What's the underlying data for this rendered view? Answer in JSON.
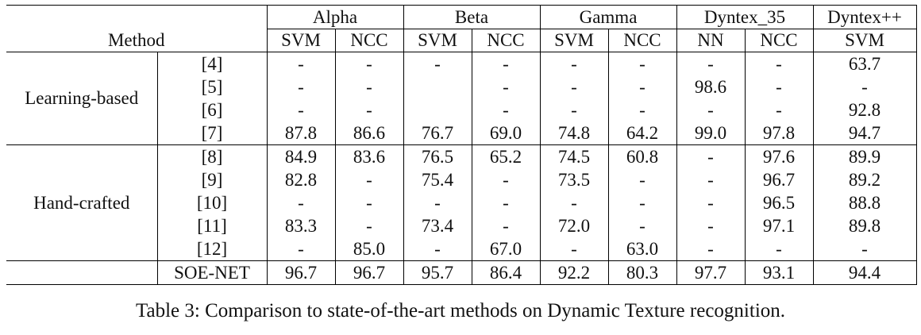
{
  "table": {
    "method_header": "Method",
    "datasets": [
      {
        "name": "Alpha",
        "metrics": [
          "SVM",
          "NCC"
        ]
      },
      {
        "name": "Beta",
        "metrics": [
          "SVM",
          "NCC"
        ]
      },
      {
        "name": "Gamma",
        "metrics": [
          "SVM",
          "NCC"
        ]
      },
      {
        "name": "Dyntex_35",
        "metrics": [
          "NN",
          "NCC"
        ]
      },
      {
        "name": "Dyntex++",
        "metrics": [
          "SVM"
        ]
      }
    ],
    "groups": [
      {
        "label": "Learning-based",
        "rows": [
          {
            "ref": "[4]",
            "values": [
              "-",
              "-",
              "-",
              "-",
              "-",
              "-",
              "-",
              "-",
              "63.7"
            ],
            "bold": []
          },
          {
            "ref": "[5]",
            "values": [
              "-",
              "-",
              "",
              "-",
              "-",
              "-",
              "98.6",
              "-",
              "-"
            ],
            "bold": []
          },
          {
            "ref": "[6]",
            "values": [
              "-",
              "-",
              "",
              "-",
              "-",
              "-",
              "-",
              "-",
              "92.8"
            ],
            "bold": []
          },
          {
            "ref": "[7]",
            "values": [
              "87.8",
              "86.6",
              "76.7",
              "69.0",
              "74.8",
              "64.2",
              "99.0",
              "97.8",
              "94.7"
            ],
            "bold": [
              6,
              7,
              8
            ]
          }
        ]
      },
      {
        "label": "Hand-crafted",
        "rows": [
          {
            "ref": "[8]",
            "values": [
              "84.9",
              "83.6",
              "76.5",
              "65.2",
              "74.5",
              "60.8",
              "-",
              "97.6",
              "89.9"
            ],
            "bold": []
          },
          {
            "ref": "[9]",
            "values": [
              "82.8",
              "-",
              "75.4",
              "-",
              "73.5",
              "-",
              "-",
              "96.7",
              "89.2"
            ],
            "bold": []
          },
          {
            "ref": "[10]",
            "values": [
              "-",
              "-",
              "-",
              "-",
              "-",
              "-",
              "-",
              "96.5",
              "88.8"
            ],
            "bold": []
          },
          {
            "ref": "[11]",
            "values": [
              "83.3",
              "-",
              "73.4",
              "-",
              "72.0",
              "-",
              "-",
              "97.1",
              "89.8"
            ],
            "bold": []
          },
          {
            "ref": "[12]",
            "values": [
              "-",
              "85.0",
              "-",
              "67.0",
              "-",
              "63.0",
              "-",
              "-",
              "-"
            ],
            "bold": []
          }
        ]
      },
      {
        "label": "",
        "rows": [
          {
            "ref": "SOE-NET",
            "values": [
              "96.7",
              "96.7",
              "95.7",
              "86.4",
              "92.2",
              "80.3",
              "97.7",
              "93.1",
              "94.4"
            ],
            "bold": [
              0,
              1,
              2,
              3,
              4,
              5
            ]
          }
        ]
      }
    ]
  },
  "caption": "Table 3: Comparison to state-of-the-art methods on Dynamic Texture recognition."
}
